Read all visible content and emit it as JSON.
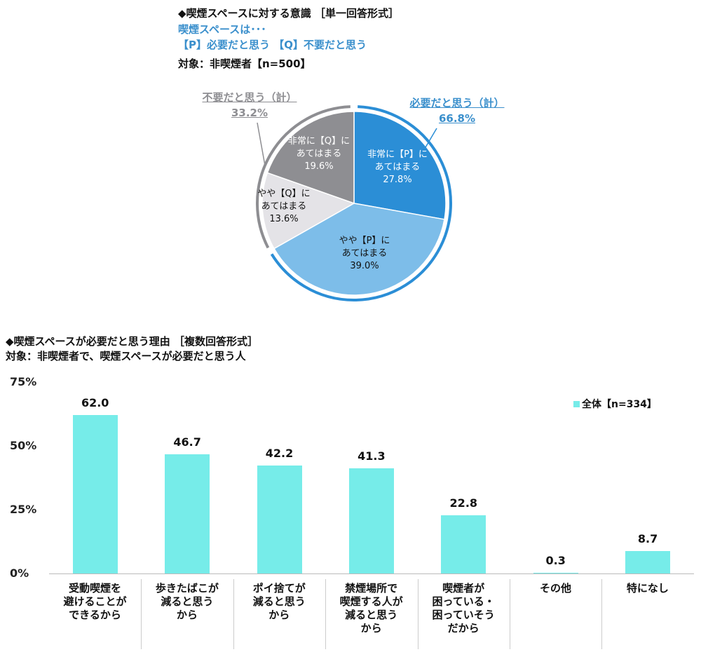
{
  "chart_data": [
    {
      "type": "pie",
      "title": "◆喫煙スペースに対する意識 ［単一回答形式］",
      "subtitle_lines": [
        "喫煙スペースは･･･",
        "【P】必要だと思う 【Q】不要だと思う"
      ],
      "target": "対象：非喫煙者【n=500】",
      "slices": [
        {
          "label_lines": [
            "非常に【P】に",
            "あてはまる"
          ],
          "value": 27.8,
          "value_label": "27.8%",
          "color": "#2b8ed6"
        },
        {
          "label_lines": [
            "やや【P】に",
            "あてはまる"
          ],
          "value": 39.0,
          "value_label": "39.0%",
          "color": "#7dbde9"
        },
        {
          "label_lines": [
            "やや【Q】に",
            "あてはまる"
          ],
          "value": 13.6,
          "value_label": "13.6%",
          "color": "#e4e3e7"
        },
        {
          "label_lines": [
            "非常に【Q】に",
            "あてはまる"
          ],
          "value": 19.6,
          "value_label": "19.6%",
          "color": "#8e8e92"
        }
      ],
      "groups": [
        {
          "label": "必要だと思う（計）",
          "value": 66.8,
          "value_label": "66.8%",
          "color": "#2b8ed6"
        },
        {
          "label": "不要だと思う（計）",
          "value": 33.2,
          "value_label": "33.2%",
          "color": "#8e8e92"
        }
      ]
    },
    {
      "type": "bar",
      "title": "◆喫煙スペースが必要だと思う理由 ［複数回答形式］",
      "target": "対象：非喫煙者で、喫煙スペースが必要だと思う人",
      "legend": "全体【n=334】",
      "legend_position": "top-right",
      "color": "#76ece9",
      "categories": [
        [
          "受動喫煙を",
          "避けることが",
          "できるから"
        ],
        [
          "歩きたばこが",
          "減ると思う",
          "から"
        ],
        [
          "ポイ捨てが",
          "減ると思う",
          "から"
        ],
        [
          "禁煙場所で",
          "喫煙する人が",
          "減ると思う",
          "から"
        ],
        [
          "喫煙者が",
          "困っている・",
          "困っていそう",
          "だから"
        ],
        [
          "その他"
        ],
        [
          "特になし"
        ]
      ],
      "values": [
        62.0,
        46.7,
        42.2,
        41.3,
        22.8,
        0.3,
        8.7
      ],
      "value_labels": [
        "62.0",
        "46.7",
        "42.2",
        "41.3",
        "22.8",
        "0.3",
        "8.7"
      ],
      "yticks": [
        "0%",
        "25%",
        "50%",
        "75%"
      ],
      "ylim": [
        0,
        75
      ]
    }
  ]
}
